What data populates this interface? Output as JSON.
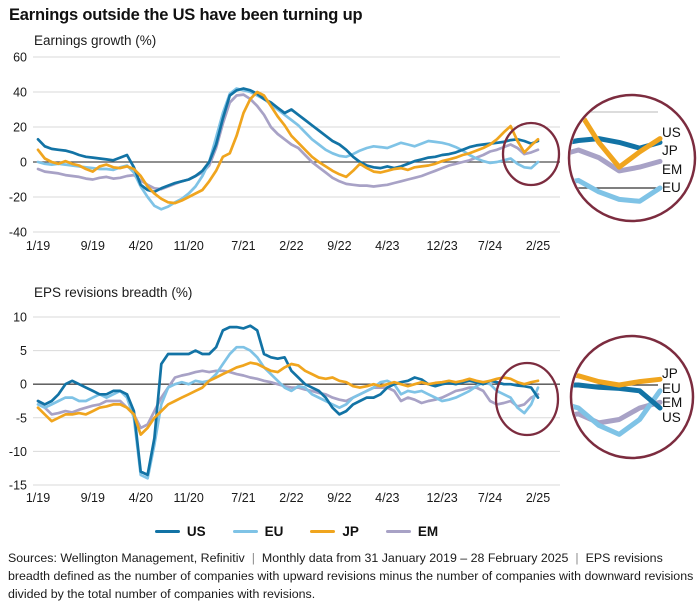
{
  "title": "Earnings outside the US have been turning up",
  "colors": {
    "us": "#1273A5",
    "eu": "#7FC3E6",
    "jp": "#F0A51E",
    "em": "#A8A2C6",
    "highlight_circle": "#7C2C3F",
    "grid": "#DADADA",
    "zero_line": "#4D4D4D"
  },
  "legend": [
    {
      "label": "US",
      "color": "#1273A5"
    },
    {
      "label": "EU",
      "color": "#7FC3E6"
    },
    {
      "label": "JP",
      "color": "#F0A51E"
    },
    {
      "label": "EM",
      "color": "#A8A2C6"
    }
  ],
  "footer": {
    "separator": "|",
    "parts": [
      "Sources: Wellington Management, Refinitiv",
      "Monthly data from 31 January 2019 – 28 February 2025",
      "EPS revisions breadth defined as the number of companies with upward revisions minus the number of companies with downward revisions divided by the total number of companies with revisions."
    ]
  },
  "chart_data": [
    {
      "type": "line",
      "title": "Earnings growth (%)",
      "ylim": [
        -40,
        60
      ],
      "yticks": [
        60,
        40,
        20,
        0,
        -20,
        -40
      ],
      "x_tick_labels": [
        "1/19",
        "9/19",
        "4/20",
        "11/20",
        "7/21",
        "2/22",
        "9/22",
        "4/23",
        "12/23",
        "7/24",
        "2/25"
      ],
      "x_tick_months": [
        0,
        8,
        15,
        22,
        30,
        37,
        44,
        51,
        59,
        66,
        73
      ],
      "x_range": "Jan 2019 – Feb 2025, monthly",
      "series": [
        {
          "name": "US",
          "color": "#1273A5",
          "z": 2,
          "values": [
            13,
            9,
            7.5,
            7,
            6.5,
            5.5,
            4,
            3,
            2.5,
            2,
            1.5,
            1,
            2.5,
            4,
            -3,
            -13,
            -16,
            -17,
            -15,
            -13.5,
            -12,
            -11,
            -10,
            -8,
            -5,
            0,
            10,
            25,
            38,
            41,
            42,
            41,
            39,
            36,
            34,
            31,
            28,
            30,
            27,
            24,
            21,
            18,
            15,
            12,
            10,
            7,
            3,
            0,
            -2,
            -3,
            -3.5,
            -2.5,
            -3.5,
            -2.5,
            -1,
            0.5,
            1.5,
            2.5,
            3,
            4,
            4.5,
            5.5,
            7,
            8.5,
            9.5,
            10,
            10.5,
            11,
            11.5,
            12.5,
            13,
            12,
            10.5,
            12
          ]
        },
        {
          "name": "EU",
          "color": "#7FC3E6",
          "z": 1,
          "values": [
            0,
            -1,
            -1.5,
            -1,
            -1.5,
            -2,
            -2.5,
            -3,
            -3.5,
            -4,
            -4,
            -4.5,
            -3,
            -2,
            -6,
            -14,
            -20,
            -25,
            -27,
            -25.5,
            -23,
            -21,
            -18,
            -14,
            -8,
            0,
            14,
            28,
            39,
            42,
            41,
            40,
            38,
            36,
            33,
            30,
            27,
            24,
            21,
            17,
            13,
            10,
            7,
            5,
            3.5,
            3,
            4.5,
            6.5,
            8,
            9,
            8.5,
            8,
            9.5,
            11,
            10,
            9,
            10.5,
            12,
            11.5,
            11,
            10,
            8.5,
            6.5,
            4,
            2,
            0.5,
            -0.5,
            0,
            1,
            2,
            -1,
            -3,
            -3.5,
            0
          ]
        },
        {
          "name": "JP",
          "color": "#F0A51E",
          "z": 3,
          "values": [
            7,
            2,
            0,
            -1,
            0.5,
            -1,
            -2,
            -4,
            -5.5,
            -2.5,
            -1.5,
            -3,
            -3.5,
            -2.5,
            -4,
            -8,
            -14,
            -18,
            -21,
            -23,
            -23.5,
            -22,
            -20,
            -18,
            -16,
            -11,
            -5,
            3,
            5,
            15,
            28,
            36,
            40,
            38,
            32,
            26,
            21,
            15,
            11,
            7,
            3,
            0,
            -2.5,
            -5,
            -7,
            -8.5,
            -5,
            -1,
            -3.5,
            -5.5,
            -6,
            -5,
            -4,
            -3.5,
            -4.5,
            -3,
            -2.5,
            -2,
            -1,
            0.5,
            1.5,
            2.5,
            4,
            5,
            6.5,
            8,
            10,
            13,
            17,
            20.5,
            12,
            5.5,
            9.5,
            13
          ]
        },
        {
          "name": "EM",
          "color": "#A8A2C6",
          "z": 0,
          "values": [
            -4,
            -5.5,
            -6,
            -6.5,
            -7.5,
            -8,
            -8.5,
            -9.5,
            -10,
            -9,
            -8.5,
            -9.5,
            -9,
            -8,
            -7.5,
            -10.5,
            -13,
            -15,
            -15.5,
            -14,
            -12.5,
            -11,
            -10,
            -8,
            -6,
            -2,
            8,
            22,
            34,
            38,
            38.5,
            36,
            32,
            27,
            20,
            16,
            13,
            10,
            8,
            4,
            0,
            -3,
            -6,
            -9,
            -11,
            -12.5,
            -13,
            -13.5,
            -13.5,
            -14,
            -13.5,
            -13,
            -12,
            -11,
            -10,
            -9,
            -8,
            -6.5,
            -5,
            -3.5,
            -2,
            -1,
            0,
            1,
            2.5,
            4,
            6,
            7,
            8.5,
            10,
            8,
            4.5,
            5.5,
            7
          ]
        }
      ],
      "inset": {
        "labels": [
          "US",
          "JP",
          "EM",
          "EU"
        ]
      }
    },
    {
      "type": "line",
      "title": "EPS revisions breadth (%)",
      "ylim": [
        -15,
        10
      ],
      "yticks": [
        10,
        5,
        0,
        -5,
        -10,
        -15
      ],
      "x_tick_labels": [
        "1/19",
        "9/19",
        "4/20",
        "11/20",
        "7/21",
        "2/22",
        "9/22",
        "4/23",
        "12/23",
        "7/24",
        "2/25"
      ],
      "x_tick_months": [
        0,
        8,
        15,
        22,
        30,
        37,
        44,
        51,
        59,
        66,
        73
      ],
      "x_range": "Jan 2019 – Feb 2025, monthly",
      "series": [
        {
          "name": "US",
          "color": "#1273A5",
          "z": 2,
          "values": [
            -2.5,
            -3,
            -2.5,
            -1.5,
            0,
            0.5,
            0,
            -0.5,
            -1,
            -1.5,
            -1.5,
            -1,
            -1,
            -1.5,
            -4,
            -13,
            -13.5,
            -8,
            3,
            4.5,
            4.5,
            4.5,
            4.5,
            5,
            4.5,
            4.5,
            5.5,
            8,
            8.5,
            8.5,
            8.3,
            8.7,
            8,
            4.5,
            4,
            3.8,
            4,
            2,
            1,
            0,
            -0.5,
            -1,
            -2,
            -3.5,
            -4.5,
            -4,
            -3,
            -2.5,
            -2,
            -2,
            -1.5,
            -0.5,
            0,
            0.3,
            0.5,
            1,
            0.7,
            0,
            -0.3,
            0,
            0.2,
            0,
            0.3,
            0.5,
            0.3,
            0,
            0.5,
            0.3,
            0,
            0,
            -0.2,
            -0.3,
            -0.5,
            -2
          ]
        },
        {
          "name": "EU",
          "color": "#7FC3E6",
          "z": 1,
          "values": [
            -3,
            -3.5,
            -3,
            -2.5,
            -2,
            -2,
            -2.5,
            -2.5,
            -2,
            -1.5,
            -2,
            -1.5,
            -1,
            -2,
            -5,
            -13.5,
            -14,
            -9,
            -3,
            -0.5,
            0,
            0.3,
            0,
            0.5,
            0.3,
            0.5,
            1.5,
            3,
            4.5,
            5.5,
            5.5,
            5,
            4,
            2.5,
            1.5,
            0.5,
            -0.5,
            -1,
            -0.3,
            -0.5,
            -1.5,
            -2,
            -2.5,
            -3,
            -3.5,
            -3,
            -2,
            -1.5,
            -1,
            -0.5,
            0.3,
            0.5,
            0,
            -1.5,
            -1,
            -1.2,
            -1,
            -1.5,
            -2,
            -2.5,
            -2.3,
            -2,
            -1.5,
            -1,
            -0.3,
            0.3,
            0,
            -1,
            -1.5,
            -2,
            -3.5,
            -4.3,
            -3,
            -0.5
          ]
        },
        {
          "name": "JP",
          "color": "#F0A51E",
          "z": 3,
          "values": [
            -3.5,
            -4.5,
            -5.5,
            -5,
            -4.5,
            -4.5,
            -4.3,
            -4.5,
            -4,
            -3.5,
            -3.3,
            -3,
            -3,
            -3.5,
            -4.5,
            -7.5,
            -6.5,
            -5,
            -4,
            -3,
            -2.5,
            -2,
            -1.5,
            -1,
            -0.5,
            0.5,
            1,
            1.5,
            2,
            2.5,
            2.8,
            3.2,
            3,
            2.5,
            2,
            1.8,
            2.5,
            3,
            2.8,
            2,
            1.5,
            1,
            0.8,
            1,
            0.5,
            0.3,
            -0.3,
            -0.5,
            -0.3,
            0,
            -0.3,
            0,
            0.3,
            0,
            -0.3,
            0,
            0.3,
            0,
            0.2,
            0.3,
            0.5,
            0.3,
            0.5,
            0.8,
            0.5,
            0.3,
            0.5,
            0.8,
            1,
            0.8,
            0.3,
            0,
            0.3,
            0.5
          ]
        },
        {
          "name": "EM",
          "color": "#A8A2C6",
          "z": 0,
          "values": [
            -2.5,
            -3.5,
            -4.5,
            -4.3,
            -4,
            -4.2,
            -3.8,
            -3.5,
            -3.2,
            -3,
            -2.5,
            -2.5,
            -2.5,
            -3.5,
            -4.5,
            -6.5,
            -6,
            -4,
            -2,
            -0.5,
            1,
            1.3,
            1.5,
            1.8,
            2,
            1.8,
            2,
            2,
            1.8,
            1.5,
            1.3,
            1,
            0.8,
            0.5,
            0.3,
            0,
            -0.3,
            -0.5,
            -0.5,
            -0.8,
            -1,
            -1.3,
            -1.5,
            -2,
            -2.3,
            -2.5,
            -2,
            -1.5,
            -1,
            -0.5,
            -0.5,
            -0.5,
            -1,
            -2.5,
            -2,
            -2.3,
            -2.8,
            -2.5,
            -2.3,
            -2,
            -1.5,
            -1,
            -0.8,
            -0.5,
            -0.5,
            -1,
            -2.5,
            -3,
            -2.8,
            -2.5,
            -3.3,
            -3,
            -2,
            -1.5
          ]
        }
      ],
      "inset": {
        "labels": [
          "JP",
          "EU",
          "EM",
          "US"
        ]
      }
    }
  ]
}
